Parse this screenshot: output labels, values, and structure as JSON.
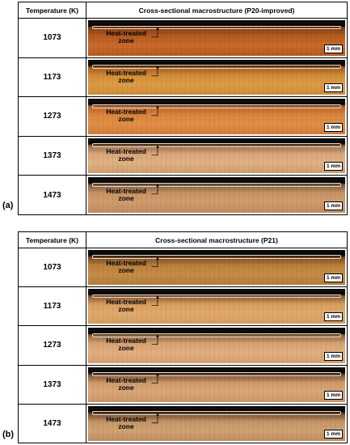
{
  "panel_a": {
    "label": "(a)",
    "header_temperature": "Temperature (K)",
    "header_macro": "Cross-sectional macrostructure (P20-improved)",
    "rows": [
      {
        "temperature": "1073",
        "zone_line1": "Heat-treated",
        "zone_line2": "zone",
        "scale": "1 mm"
      },
      {
        "temperature": "1173",
        "zone_line1": "Heat-treated",
        "zone_line2": "zone",
        "scale": "1 mm"
      },
      {
        "temperature": "1273",
        "zone_line1": "Heat-treated",
        "zone_line2": "zone",
        "scale": "1 mm"
      },
      {
        "temperature": "1373",
        "zone_line1": "Heat-treated",
        "zone_line2": "zone",
        "scale": "1 mm"
      },
      {
        "temperature": "1473",
        "zone_line1": "Heat-treated",
        "zone_line2": "zone",
        "scale": "1 mm"
      }
    ]
  },
  "panel_b": {
    "label": "(b)",
    "header_temperature": "Temperature (K)",
    "header_macro": "Cross-sectional macrostructure (P21)",
    "rows": [
      {
        "temperature": "1073",
        "zone_line1": "Heat-treated",
        "zone_line2": "zone",
        "scale": "1 mm"
      },
      {
        "temperature": "1173",
        "zone_line1": "Heat-treated",
        "zone_line2": "zone",
        "scale": "1 mm"
      },
      {
        "temperature": "1273",
        "zone_line1": "Heat-treated",
        "zone_line2": "zone",
        "scale": "1 mm"
      },
      {
        "temperature": "1373",
        "zone_line1": "Heat-treated",
        "zone_line2": "zone",
        "scale": "1 mm"
      },
      {
        "temperature": "1473",
        "zone_line1": "Heat-treated",
        "zone_line2": "zone",
        "scale": "1 mm"
      }
    ]
  }
}
